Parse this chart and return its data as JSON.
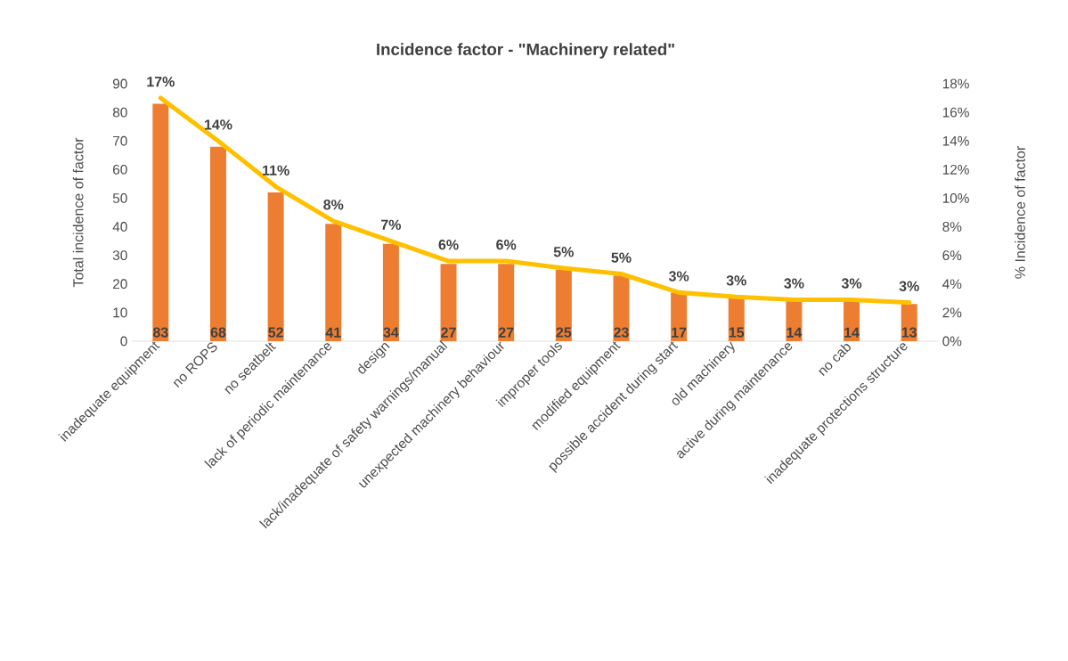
{
  "chart_data": {
    "type": "bar",
    "title": "Incidence factor - \"Machinery related\"",
    "ylabel": "Total incidence of factor",
    "y2label": "% Incidence of factor",
    "categories": [
      "inadequate equipment",
      "no ROPS",
      "no seatbelt",
      "lack of periodic maintenance",
      "design",
      "lack/inadequate of safety warnings/manual",
      "unexpected machinery behaviour",
      "improper tools",
      "modified equipment",
      "possible accident during start",
      "old machinery",
      "active during maintenance",
      "no cab",
      "inadequate protections structure"
    ],
    "series": [
      {
        "color": "#ed7d31",
        "values": [
          83,
          68,
          52,
          41,
          34,
          27,
          27,
          25,
          23,
          17,
          15,
          14,
          14,
          13
        ],
        "value_labels": [
          "83",
          "68",
          "52",
          "41",
          "34",
          "27",
          "27",
          "25",
          "23",
          "17",
          "15",
          "14",
          "14",
          "13"
        ]
      },
      {
        "type": "line",
        "axis": "y2",
        "color": "#ffc000",
        "values": [
          17.0,
          14.0,
          10.8,
          8.4,
          7.0,
          5.6,
          5.6,
          5.1,
          4.7,
          3.4,
          3.1,
          2.9,
          2.9,
          2.7
        ],
        "value_labels": [
          "17%",
          "14%",
          "11%",
          "8%",
          "7%",
          "6%",
          "6%",
          "5%",
          "5%",
          "3%",
          "3%",
          "3%",
          "3%",
          "3%"
        ]
      }
    ],
    "ylim": [
      0,
      90
    ],
    "yticks": [
      0,
      10,
      20,
      30,
      40,
      50,
      60,
      70,
      80,
      90
    ],
    "y2lim": [
      0,
      18
    ],
    "y2ticks": [
      {
        "value": 0,
        "label": "0%"
      },
      {
        "value": 2,
        "label": "2%"
      },
      {
        "value": 4,
        "label": "4%"
      },
      {
        "value": 6,
        "label": "6%"
      },
      {
        "value": 8,
        "label": "8%"
      },
      {
        "value": 10,
        "label": "10%"
      },
      {
        "value": 12,
        "label": "12%"
      },
      {
        "value": 14,
        "label": "14%"
      },
      {
        "value": 16,
        "label": "16%"
      },
      {
        "value": 18,
        "label": "18%"
      }
    ]
  }
}
